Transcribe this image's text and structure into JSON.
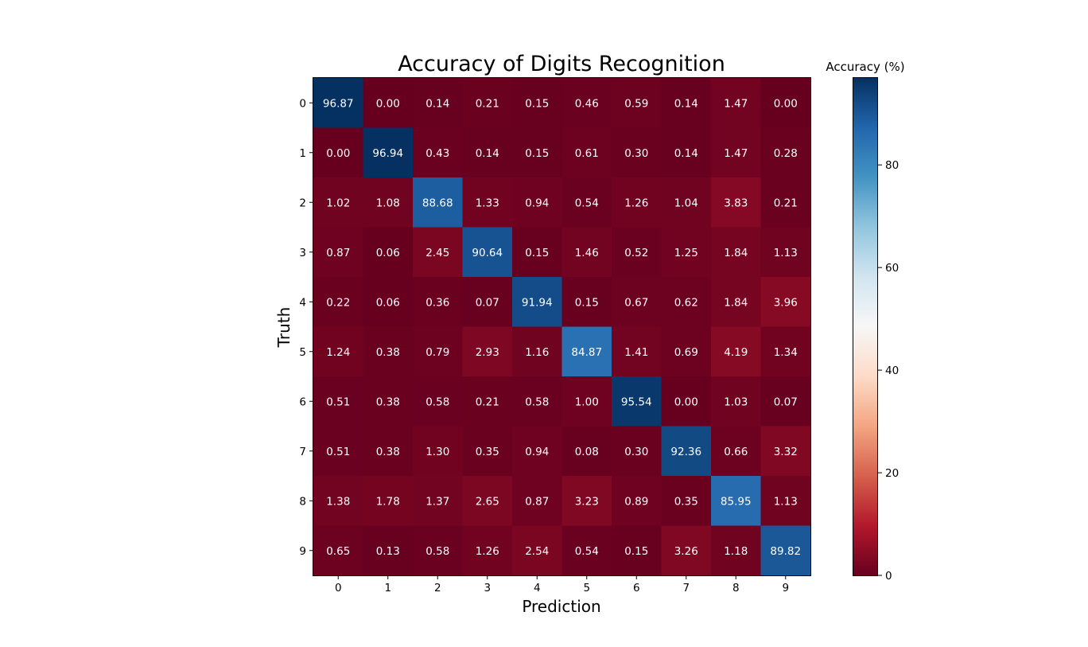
{
  "chart_data": {
    "type": "heatmap",
    "title": "Accuracy of Digits Recognition",
    "xlabel": "Prediction",
    "ylabel": "Truth",
    "x_categories": [
      "0",
      "1",
      "2",
      "3",
      "4",
      "5",
      "6",
      "7",
      "8",
      "9"
    ],
    "y_categories": [
      "0",
      "1",
      "2",
      "3",
      "4",
      "5",
      "6",
      "7",
      "8",
      "9"
    ],
    "values": [
      [
        96.87,
        0.0,
        0.14,
        0.21,
        0.15,
        0.46,
        0.59,
        0.14,
        1.47,
        0.0
      ],
      [
        0.0,
        96.94,
        0.43,
        0.14,
        0.15,
        0.61,
        0.3,
        0.14,
        1.47,
        0.28
      ],
      [
        1.02,
        1.08,
        88.68,
        1.33,
        0.94,
        0.54,
        1.26,
        1.04,
        3.83,
        0.21
      ],
      [
        0.87,
        0.06,
        2.45,
        90.64,
        0.15,
        1.46,
        0.52,
        1.25,
        1.84,
        1.13
      ],
      [
        0.22,
        0.06,
        0.36,
        0.07,
        91.94,
        0.15,
        0.67,
        0.62,
        1.84,
        3.96
      ],
      [
        1.24,
        0.38,
        0.79,
        2.93,
        1.16,
        84.87,
        1.41,
        0.69,
        4.19,
        1.34
      ],
      [
        0.51,
        0.38,
        0.58,
        0.21,
        0.58,
        1.0,
        95.54,
        0.0,
        1.03,
        0.07
      ],
      [
        0.51,
        0.38,
        1.3,
        0.35,
        0.94,
        0.08,
        0.3,
        92.36,
        0.66,
        3.32
      ],
      [
        1.38,
        1.78,
        1.37,
        2.65,
        0.87,
        3.23,
        0.89,
        0.35,
        85.95,
        1.13
      ],
      [
        0.65,
        0.13,
        0.58,
        1.26,
        2.54,
        0.54,
        0.15,
        3.26,
        1.18,
        89.82
      ]
    ],
    "value_format_decimals": 2,
    "colormap": "RdBu",
    "colorbar": {
      "label": "Accuracy (%)",
      "range": [
        0,
        96.94
      ],
      "ticks": [
        0,
        20,
        40,
        60,
        80
      ]
    },
    "annotation_text_color": "#ffffff",
    "grid": false
  }
}
